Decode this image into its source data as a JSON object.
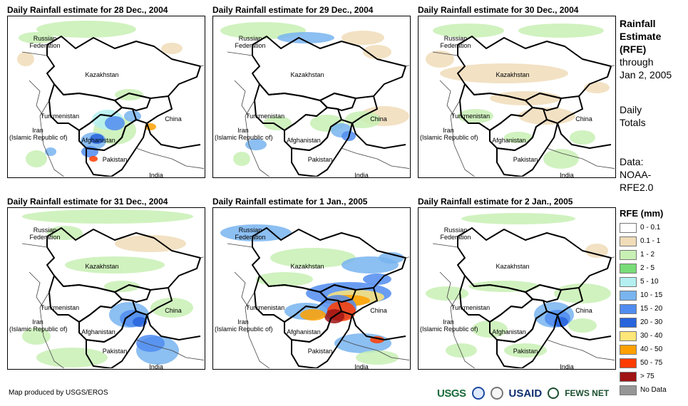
{
  "panels": [
    {
      "title": "Daily Rainfall estimate for 28 Dec., 2004"
    },
    {
      "title": "Daily Rainfall estimate for 29 Dec., 2004"
    },
    {
      "title": "Daily Rainfall estimate for 30 Dec., 2004"
    },
    {
      "title": "Daily Rainfall estimate for 31 Dec., 2004"
    },
    {
      "title": "Daily Rainfall estimate for 1 Jan., 2005"
    },
    {
      "title": "Daily Rainfall estimate for 2 Jan., 2005"
    }
  ],
  "map_labels": {
    "russia_1": "Russian",
    "russia_2": "Federation",
    "kazakhstan": "Kazakhstan",
    "turkmenistan": "Turkmenistan",
    "iran_1": "Iran",
    "iran_2": "(Islamic Republic of)",
    "afghanistan": "Afghanistan",
    "pakistan": "Pakistan",
    "china": "China",
    "india": "India"
  },
  "sidebar": {
    "title_1": "Rainfall",
    "title_2": "Estimate",
    "title_3": "(RFE)",
    "through_1": "through",
    "through_2": "Jan 2, 2005",
    "totals_1": "Daily",
    "totals_2": "Totals",
    "data_1": "Data:",
    "data_2": "NOAA-",
    "data_3": "RFE2.0"
  },
  "legend": {
    "title": "RFE (mm)",
    "items": [
      {
        "label": "0 - 0.1",
        "color": "#ffffff"
      },
      {
        "label": "0.1 - 1",
        "color": "#f0dcb8"
      },
      {
        "label": "1 - 2",
        "color": "#c8f0b4"
      },
      {
        "label": "2 - 5",
        "color": "#78dc78"
      },
      {
        "label": "5 - 10",
        "color": "#b4f0f0"
      },
      {
        "label": "10 - 15",
        "color": "#78b4f0"
      },
      {
        "label": "15 - 20",
        "color": "#508cf0"
      },
      {
        "label": "20 - 30",
        "color": "#2864dc"
      },
      {
        "label": "30 - 40",
        "color": "#ffe678"
      },
      {
        "label": "40 - 50",
        "color": "#ffa000"
      },
      {
        "label": "50 - 75",
        "color": "#ff3c00"
      },
      {
        "label": "> 75",
        "color": "#a01414"
      },
      {
        "label": "No Data",
        "color": "#969696"
      }
    ]
  },
  "footer": {
    "credit": "Map produced by USGS/EROS",
    "usgs": "USGS",
    "usaid": "USAID",
    "fews": "FEWS NET"
  }
}
